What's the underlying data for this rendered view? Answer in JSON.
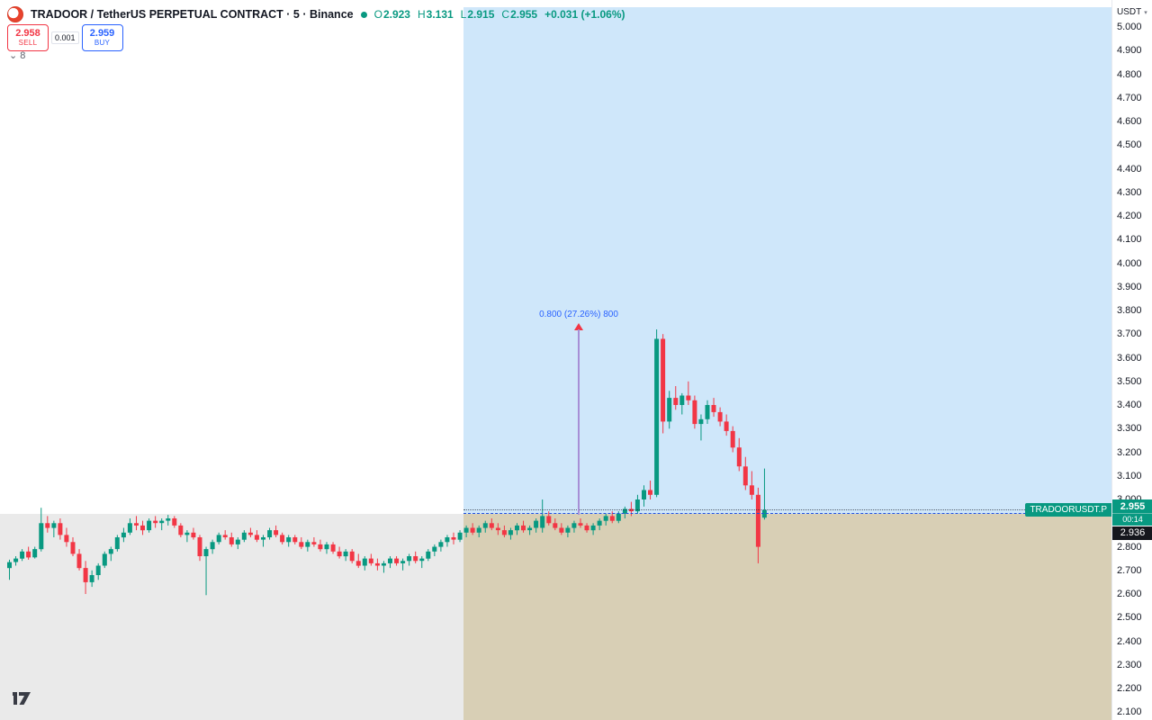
{
  "header": {
    "title": "TRADOOR / TetherUS PERPETUAL CONTRACT · 5 · Binance",
    "ohlc": {
      "o_label": "O",
      "o": "2.923",
      "h_label": "H",
      "h": "3.131",
      "l_label": "L",
      "l": "2.915",
      "c_label": "C",
      "c": "2.955",
      "change": "+0.031 (+1.06%)"
    },
    "collapsed_count": "8"
  },
  "trade": {
    "sell_price": "2.958",
    "sell_label": "SELL",
    "spread": "0.001",
    "buy_price": "2.959",
    "buy_label": "BUY"
  },
  "axis": {
    "currency": "USDT"
  },
  "price_labels": {
    "symbol": "TRADOORUSDT.P",
    "price": "2.955",
    "countdown": "00:14",
    "secondary": "2.936"
  },
  "measure": {
    "label": "0.800 (27.26%) 800"
  },
  "icons": {
    "caret_down": "▾",
    "chevron_down": "⌄"
  },
  "colors": {
    "up": "#089981",
    "down": "#f23645",
    "accent_blue": "#2962ff",
    "blue_zone": "#cfe7fa",
    "beige_zone": "#d8cfb5",
    "gray_zone": "#eaeaea",
    "measure_line": "#a78fd6"
  },
  "chart_data": {
    "type": "candlestick",
    "title": "TRADOOR / TetherUS Perpetual Contract, 5m, Binance",
    "ylabel": "Price (USDT)",
    "ylim": [
      2.1,
      5.0
    ],
    "grid": false,
    "last_price": 2.955,
    "price_axis_ticks": [
      "5.000",
      "4.900",
      "4.800",
      "4.700",
      "4.600",
      "4.500",
      "4.400",
      "4.300",
      "4.200",
      "4.100",
      "4.000",
      "3.900",
      "3.800",
      "3.700",
      "3.600",
      "3.500",
      "3.400",
      "3.300",
      "3.200",
      "3.100",
      "3.000",
      "2.800",
      "2.700",
      "2.600",
      "2.500",
      "2.400",
      "2.300",
      "2.200",
      "2.100"
    ],
    "measurement": {
      "from_price": 2.934,
      "to_price": 3.734,
      "label": "0.800 (27.26%) 800"
    },
    "candles": [
      [
        2.71,
        2.745,
        2.66,
        2.735
      ],
      [
        2.735,
        2.76,
        2.72,
        2.75
      ],
      [
        2.75,
        2.79,
        2.74,
        2.78
      ],
      [
        2.78,
        2.8,
        2.745,
        2.755
      ],
      [
        2.755,
        2.8,
        2.75,
        2.79
      ],
      [
        2.79,
        2.965,
        2.78,
        2.9
      ],
      [
        2.9,
        2.93,
        2.86,
        2.88
      ],
      [
        2.88,
        2.91,
        2.84,
        2.9
      ],
      [
        2.9,
        2.92,
        2.83,
        2.85
      ],
      [
        2.85,
        2.88,
        2.8,
        2.82
      ],
      [
        2.82,
        2.84,
        2.76,
        2.77
      ],
      [
        2.77,
        2.79,
        2.7,
        2.71
      ],
      [
        2.71,
        2.74,
        2.6,
        2.65
      ],
      [
        2.65,
        2.7,
        2.63,
        2.68
      ],
      [
        2.68,
        2.73,
        2.66,
        2.72
      ],
      [
        2.72,
        2.78,
        2.71,
        2.77
      ],
      [
        2.77,
        2.8,
        2.74,
        2.79
      ],
      [
        2.79,
        2.85,
        2.78,
        2.84
      ],
      [
        2.84,
        2.88,
        2.82,
        2.86
      ],
      [
        2.86,
        2.92,
        2.85,
        2.9
      ],
      [
        2.9,
        2.93,
        2.87,
        2.89
      ],
      [
        2.89,
        2.91,
        2.85,
        2.87
      ],
      [
        2.87,
        2.92,
        2.86,
        2.91
      ],
      [
        2.91,
        2.93,
        2.88,
        2.9
      ],
      [
        2.9,
        2.92,
        2.87,
        2.91
      ],
      [
        2.91,
        2.935,
        2.89,
        2.92
      ],
      [
        2.92,
        2.93,
        2.88,
        2.89
      ],
      [
        2.89,
        2.9,
        2.84,
        2.85
      ],
      [
        2.85,
        2.87,
        2.82,
        2.86
      ],
      [
        2.86,
        2.88,
        2.83,
        2.84
      ],
      [
        2.84,
        2.85,
        2.74,
        2.76
      ],
      [
        2.76,
        2.8,
        2.595,
        2.79
      ],
      [
        2.79,
        2.83,
        2.77,
        2.82
      ],
      [
        2.82,
        2.86,
        2.81,
        2.85
      ],
      [
        2.85,
        2.87,
        2.83,
        2.84
      ],
      [
        2.84,
        2.86,
        2.8,
        2.81
      ],
      [
        2.81,
        2.84,
        2.79,
        2.83
      ],
      [
        2.83,
        2.87,
        2.82,
        2.86
      ],
      [
        2.86,
        2.88,
        2.84,
        2.85
      ],
      [
        2.85,
        2.87,
        2.82,
        2.83
      ],
      [
        2.83,
        2.85,
        2.8,
        2.84
      ],
      [
        2.84,
        2.88,
        2.83,
        2.87
      ],
      [
        2.87,
        2.89,
        2.84,
        2.85
      ],
      [
        2.85,
        2.86,
        2.81,
        2.82
      ],
      [
        2.82,
        2.85,
        2.8,
        2.84
      ],
      [
        2.84,
        2.85,
        2.81,
        2.82
      ],
      [
        2.82,
        2.84,
        2.79,
        2.8
      ],
      [
        2.8,
        2.83,
        2.78,
        2.82
      ],
      [
        2.82,
        2.84,
        2.8,
        2.81
      ],
      [
        2.81,
        2.83,
        2.78,
        2.79
      ],
      [
        2.79,
        2.82,
        2.77,
        2.81
      ],
      [
        2.81,
        2.82,
        2.77,
        2.78
      ],
      [
        2.78,
        2.8,
        2.75,
        2.76
      ],
      [
        2.76,
        2.79,
        2.74,
        2.78
      ],
      [
        2.78,
        2.79,
        2.73,
        2.74
      ],
      [
        2.74,
        2.77,
        2.71,
        2.72
      ],
      [
        2.72,
        2.76,
        2.7,
        2.75
      ],
      [
        2.75,
        2.77,
        2.72,
        2.73
      ],
      [
        2.73,
        2.75,
        2.7,
        2.72
      ],
      [
        2.72,
        2.74,
        2.69,
        2.73
      ],
      [
        2.73,
        2.76,
        2.71,
        2.75
      ],
      [
        2.75,
        2.76,
        2.72,
        2.73
      ],
      [
        2.73,
        2.75,
        2.7,
        2.74
      ],
      [
        2.74,
        2.77,
        2.72,
        2.76
      ],
      [
        2.76,
        2.78,
        2.73,
        2.74
      ],
      [
        2.74,
        2.76,
        2.71,
        2.75
      ],
      [
        2.75,
        2.79,
        2.74,
        2.78
      ],
      [
        2.78,
        2.81,
        2.76,
        2.8
      ],
      [
        2.8,
        2.83,
        2.78,
        2.82
      ],
      [
        2.82,
        2.85,
        2.8,
        2.84
      ],
      [
        2.84,
        2.86,
        2.81,
        2.83
      ],
      [
        2.83,
        2.87,
        2.82,
        2.86
      ],
      [
        2.86,
        2.89,
        2.84,
        2.88
      ],
      [
        2.88,
        2.9,
        2.85,
        2.86
      ],
      [
        2.86,
        2.89,
        2.84,
        2.88
      ],
      [
        2.88,
        2.91,
        2.86,
        2.9
      ],
      [
        2.9,
        2.92,
        2.87,
        2.88
      ],
      [
        2.88,
        2.9,
        2.85,
        2.87
      ],
      [
        2.87,
        2.89,
        2.84,
        2.85
      ],
      [
        2.85,
        2.88,
        2.83,
        2.87
      ],
      [
        2.87,
        2.9,
        2.85,
        2.89
      ],
      [
        2.89,
        2.91,
        2.86,
        2.87
      ],
      [
        2.87,
        2.89,
        2.85,
        2.88
      ],
      [
        2.88,
        2.92,
        2.86,
        2.91
      ],
      [
        2.88,
        3.0,
        2.86,
        2.93
      ],
      [
        2.93,
        2.95,
        2.89,
        2.9
      ],
      [
        2.9,
        2.92,
        2.87,
        2.88
      ],
      [
        2.88,
        2.9,
        2.85,
        2.86
      ],
      [
        2.86,
        2.89,
        2.84,
        2.88
      ],
      [
        2.88,
        2.91,
        2.86,
        2.9
      ],
      [
        2.9,
        2.92,
        2.88,
        2.89
      ],
      [
        2.89,
        2.9,
        2.86,
        2.87
      ],
      [
        2.87,
        2.9,
        2.85,
        2.89
      ],
      [
        2.89,
        2.92,
        2.87,
        2.91
      ],
      [
        2.91,
        2.94,
        2.89,
        2.93
      ],
      [
        2.93,
        2.95,
        2.9,
        2.91
      ],
      [
        2.91,
        2.95,
        2.9,
        2.94
      ],
      [
        2.94,
        2.97,
        2.92,
        2.96
      ],
      [
        2.96,
        2.99,
        2.93,
        2.95
      ],
      [
        2.95,
        3.02,
        2.94,
        3.0
      ],
      [
        3.0,
        3.06,
        2.97,
        3.04
      ],
      [
        3.04,
        3.08,
        3.0,
        3.02
      ],
      [
        3.02,
        3.72,
        3.01,
        3.68
      ],
      [
        3.68,
        3.7,
        3.28,
        3.33
      ],
      [
        3.33,
        3.46,
        3.3,
        3.43
      ],
      [
        3.43,
        3.48,
        3.38,
        3.4
      ],
      [
        3.4,
        3.45,
        3.36,
        3.44
      ],
      [
        3.44,
        3.5,
        3.4,
        3.42
      ],
      [
        3.42,
        3.44,
        3.3,
        3.32
      ],
      [
        3.32,
        3.36,
        3.25,
        3.34
      ],
      [
        3.34,
        3.42,
        3.32,
        3.4
      ],
      [
        3.4,
        3.43,
        3.35,
        3.37
      ],
      [
        3.37,
        3.39,
        3.31,
        3.33
      ],
      [
        3.33,
        3.36,
        3.27,
        3.29
      ],
      [
        3.29,
        3.31,
        3.2,
        3.22
      ],
      [
        3.22,
        3.26,
        3.12,
        3.14
      ],
      [
        3.14,
        3.18,
        3.04,
        3.06
      ],
      [
        3.06,
        3.12,
        3.0,
        3.02
      ],
      [
        3.02,
        3.05,
        2.73,
        2.8
      ],
      [
        2.923,
        3.131,
        2.915,
        2.955
      ]
    ]
  }
}
